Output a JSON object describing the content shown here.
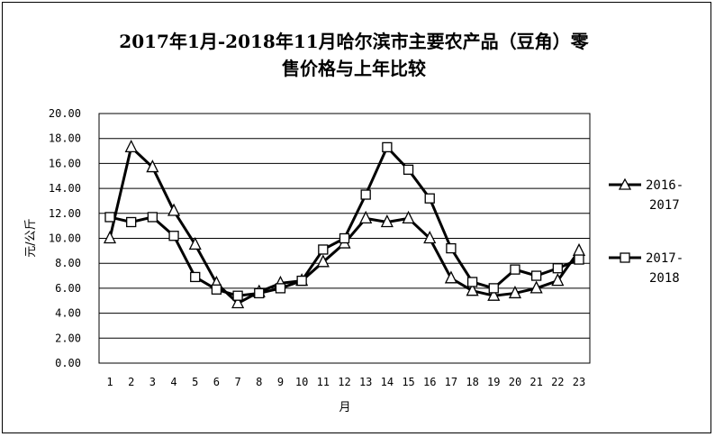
{
  "chart_data": {
    "type": "line",
    "title_line1": "2017年1月-2018年11月哈尔滨市主要农产品（豆角）零",
    "title_line2": "售价格与上年比较",
    "xlabel": "月",
    "ylabel": "元/公斤",
    "ylim": [
      0,
      20
    ],
    "yticks": [
      "0.00",
      "2.00",
      "4.00",
      "6.00",
      "8.00",
      "10.00",
      "12.00",
      "14.00",
      "16.00",
      "18.00",
      "20.00"
    ],
    "categories": [
      "1",
      "2",
      "3",
      "4",
      "5",
      "6",
      "7",
      "8",
      "9",
      "10",
      "11",
      "12",
      "13",
      "14",
      "15",
      "16",
      "17",
      "18",
      "19",
      "20",
      "21",
      "22",
      "23"
    ],
    "grid": "horizontal",
    "legend_position": "right",
    "series": [
      {
        "name": "2016-2017",
        "legend_line1": "2016-",
        "legend_line2": "2017",
        "marker": "triangle",
        "color": "#000000",
        "values": [
          10.0,
          17.3,
          15.7,
          12.2,
          9.5,
          6.4,
          4.8,
          5.7,
          6.4,
          6.6,
          8.1,
          9.6,
          11.6,
          11.3,
          11.6,
          10.0,
          6.8,
          5.8,
          5.4,
          5.6,
          6.0,
          6.6,
          9.0
        ]
      },
      {
        "name": "2017-2018",
        "legend_line1": "2017-",
        "legend_line2": "2018",
        "marker": "square",
        "color": "#000000",
        "values": [
          11.7,
          11.3,
          11.7,
          10.2,
          6.9,
          5.9,
          5.4,
          5.6,
          6.0,
          6.6,
          9.1,
          10.0,
          13.5,
          17.3,
          15.5,
          13.2,
          9.2,
          6.5,
          6.0,
          7.5,
          7.0,
          7.6,
          8.3
        ]
      }
    ]
  }
}
